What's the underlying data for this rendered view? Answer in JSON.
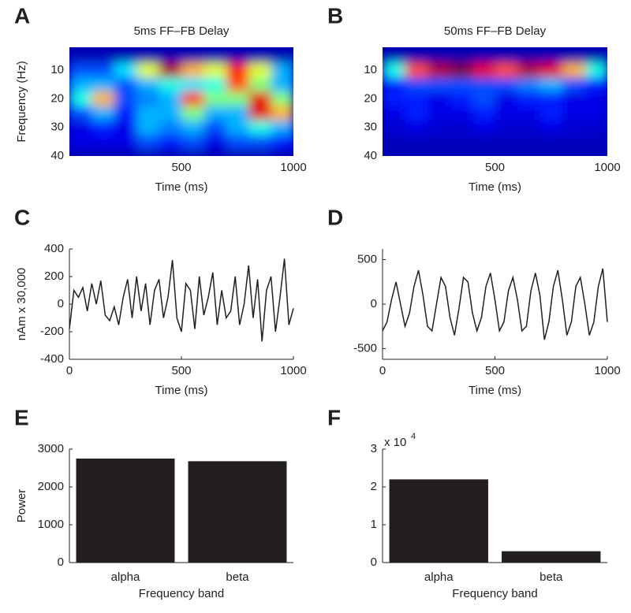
{
  "chart_data": [
    {
      "panel_label": "A",
      "type": "heatmap",
      "title": "5ms FF–FB Delay",
      "xlabel": "Time (ms)",
      "ylabel": "Frequency (Hz)",
      "x": [
        50,
        150,
        250,
        350,
        450,
        550,
        650,
        750,
        850,
        950
      ],
      "y": [
        5,
        10,
        15,
        20,
        25,
        30,
        35,
        40
      ],
      "z": [
        [
          0.05,
          0.05,
          0.05,
          0.05,
          0.05,
          0.05,
          0.05,
          0.05,
          0.05,
          0.05
        ],
        [
          0.2,
          0.2,
          0.35,
          0.6,
          0.95,
          0.7,
          0.6,
          0.85,
          0.6,
          0.3
        ],
        [
          0.3,
          0.3,
          0.2,
          0.3,
          0.4,
          0.35,
          0.4,
          0.8,
          0.5,
          0.3
        ],
        [
          0.4,
          0.7,
          0.2,
          0.25,
          0.3,
          0.85,
          0.5,
          0.5,
          0.9,
          0.5
        ],
        [
          0.2,
          0.3,
          0.15,
          0.3,
          0.3,
          0.5,
          0.3,
          0.3,
          0.9,
          0.7
        ],
        [
          0.1,
          0.15,
          0.1,
          0.3,
          0.25,
          0.3,
          0.2,
          0.3,
          0.4,
          0.3
        ],
        [
          0.1,
          0.1,
          0.1,
          0.2,
          0.15,
          0.2,
          0.1,
          0.2,
          0.2,
          0.15
        ],
        [
          0.05,
          0.05,
          0.05,
          0.05,
          0.05,
          0.05,
          0.05,
          0.05,
          0.05,
          0.05
        ]
      ],
      "xlim": [
        0,
        1000
      ],
      "xticks": [
        500,
        1000
      ],
      "ylim": [
        2,
        40
      ],
      "yticks": [
        10,
        20,
        30,
        40
      ],
      "y_inverted": true,
      "colormap": "jet"
    },
    {
      "panel_label": "B",
      "type": "heatmap",
      "title": "50ms FF–FB Delay",
      "xlabel": "Time (ms)",
      "x": [
        50,
        150,
        250,
        350,
        450,
        550,
        650,
        750,
        850,
        950
      ],
      "y": [
        5,
        10,
        15,
        20,
        25,
        30,
        35,
        40
      ],
      "z": [
        [
          0.05,
          0.05,
          0.05,
          0.05,
          0.05,
          0.05,
          0.05,
          0.05,
          0.05,
          0.05
        ],
        [
          0.4,
          0.8,
          0.95,
          1,
          0.9,
          0.8,
          0.95,
          0.9,
          0.7,
          0.4
        ],
        [
          0.15,
          0.2,
          0.2,
          0.2,
          0.2,
          0.2,
          0.25,
          0.3,
          0.2,
          0.15
        ],
        [
          0.15,
          0.15,
          0.1,
          0.15,
          0.2,
          0.1,
          0.15,
          0.15,
          0.1,
          0.1
        ],
        [
          0.1,
          0.15,
          0.1,
          0.1,
          0.15,
          0.1,
          0.1,
          0.15,
          0.1,
          0.1
        ],
        [
          0.08,
          0.1,
          0.08,
          0.08,
          0.1,
          0.08,
          0.08,
          0.1,
          0.08,
          0.08
        ],
        [
          0.06,
          0.06,
          0.06,
          0.06,
          0.06,
          0.06,
          0.06,
          0.06,
          0.06,
          0.06
        ],
        [
          0.05,
          0.05,
          0.05,
          0.05,
          0.05,
          0.05,
          0.05,
          0.05,
          0.05,
          0.05
        ]
      ],
      "xlim": [
        0,
        1000
      ],
      "xticks": [
        500,
        1000
      ],
      "ylim": [
        2,
        40
      ],
      "yticks": [
        10,
        20,
        30,
        40
      ],
      "y_inverted": true,
      "colormap": "jet"
    },
    {
      "panel_label": "C",
      "type": "line",
      "xlabel": "Time (ms)",
      "ylabel": "nAm x 30,000",
      "color": "#231f20",
      "x": [
        0,
        20,
        40,
        60,
        80,
        100,
        120,
        140,
        160,
        180,
        200,
        220,
        240,
        260,
        280,
        300,
        320,
        340,
        360,
        380,
        400,
        420,
        440,
        460,
        480,
        500,
        520,
        540,
        560,
        580,
        600,
        620,
        640,
        660,
        680,
        700,
        720,
        740,
        760,
        780,
        800,
        820,
        840,
        860,
        880,
        900,
        920,
        940,
        960,
        980,
        1000
      ],
      "values": [
        -180,
        100,
        50,
        120,
        -50,
        150,
        0,
        170,
        -80,
        -120,
        -20,
        -150,
        50,
        180,
        -100,
        200,
        -50,
        150,
        -150,
        100,
        180,
        -100,
        50,
        320,
        -100,
        -200,
        150,
        100,
        -180,
        200,
        -80,
        50,
        230,
        -150,
        100,
        -100,
        -50,
        200,
        -150,
        0,
        280,
        -100,
        180,
        -270,
        100,
        200,
        -200,
        50,
        330,
        -150,
        -30
      ],
      "xlim": [
        0,
        1000
      ],
      "xticks": [
        0,
        500,
        1000
      ],
      "ylim": [
        -400,
        400
      ],
      "yticks": [
        -400,
        -200,
        0,
        200,
        400
      ]
    },
    {
      "panel_label": "D",
      "type": "line",
      "xlabel": "Time (ms)",
      "color": "#231f20",
      "x": [
        0,
        20,
        40,
        60,
        80,
        100,
        120,
        140,
        160,
        180,
        200,
        220,
        240,
        260,
        280,
        300,
        320,
        340,
        360,
        380,
        400,
        420,
        440,
        460,
        480,
        500,
        520,
        540,
        560,
        580,
        600,
        620,
        640,
        660,
        680,
        700,
        720,
        740,
        760,
        780,
        800,
        820,
        840,
        860,
        880,
        900,
        920,
        940,
        960,
        980,
        1000
      ],
      "values": [
        -300,
        -200,
        50,
        250,
        0,
        -250,
        -100,
        200,
        380,
        100,
        -250,
        -300,
        0,
        300,
        200,
        -150,
        -350,
        -50,
        300,
        250,
        -100,
        -300,
        -150,
        200,
        350,
        50,
        -300,
        -200,
        150,
        300,
        50,
        -300,
        -250,
        150,
        350,
        100,
        -400,
        -200,
        200,
        380,
        50,
        -350,
        -200,
        200,
        300,
        0,
        -350,
        -200,
        200,
        400,
        -200
      ],
      "xlim": [
        0,
        1000
      ],
      "xticks": [
        0,
        500,
        1000
      ],
      "ylim": [
        -620,
        620
      ],
      "yticks": [
        -500,
        0,
        500
      ]
    },
    {
      "panel_label": "E",
      "type": "bar",
      "xlabel": "Frequency band",
      "ylabel": "Power",
      "color": "#231f20",
      "categories": [
        "alpha",
        "beta"
      ],
      "values": [
        2750,
        2680
      ],
      "ylim": [
        0,
        3000
      ],
      "yticks": [
        0,
        1000,
        2000,
        3000
      ]
    },
    {
      "panel_label": "F",
      "type": "bar",
      "xlabel": "Frequency band",
      "color": "#231f20",
      "y_multiplier": "x 10",
      "y_multiplier_exponent": "4",
      "categories": [
        "alpha",
        "beta"
      ],
      "values": [
        2.2,
        0.3
      ],
      "ylim": [
        0,
        3
      ],
      "yticks": [
        0,
        1,
        2,
        3
      ]
    }
  ]
}
